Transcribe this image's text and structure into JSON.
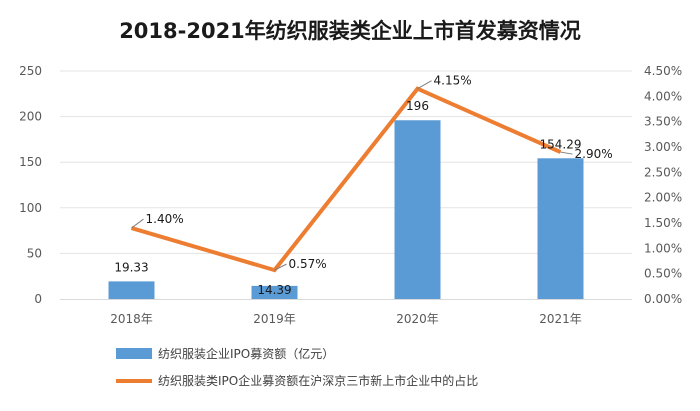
{
  "chart_data": {
    "type": "bar",
    "title": "2018-2021年纺织服装类企业上市首发募资情况",
    "categories": [
      "2018年",
      "2019年",
      "2020年",
      "2021年"
    ],
    "series": [
      {
        "name": "纺织服装企业IPO募资额（亿元）",
        "type": "bar",
        "axis": "left",
        "color": "#5b9bd5",
        "values": [
          19.33,
          14.39,
          196,
          154.29
        ],
        "labels": [
          "19.33",
          "14.39",
          "196",
          "154.29"
        ]
      },
      {
        "name": "纺织服装类IPO企业募资额在沪深京三市新上市企业中的占比",
        "type": "line",
        "axis": "right",
        "color": "#ed7d31",
        "values": [
          1.4,
          0.57,
          4.15,
          2.9
        ],
        "labels": [
          "1.40%",
          "0.57%",
          "4.15%",
          "2.90%"
        ]
      }
    ],
    "y_left": {
      "min": 0,
      "max": 250,
      "ticks": [
        "0",
        "50",
        "100",
        "150",
        "200",
        "250"
      ]
    },
    "y_right": {
      "min": 0,
      "max": 4.5,
      "ticks": [
        "0.00%",
        "0.50%",
        "1.00%",
        "1.50%",
        "2.00%",
        "2.50%",
        "3.00%",
        "3.50%",
        "4.00%",
        "4.50%"
      ]
    },
    "grid": true,
    "legend_position": "bottom"
  }
}
